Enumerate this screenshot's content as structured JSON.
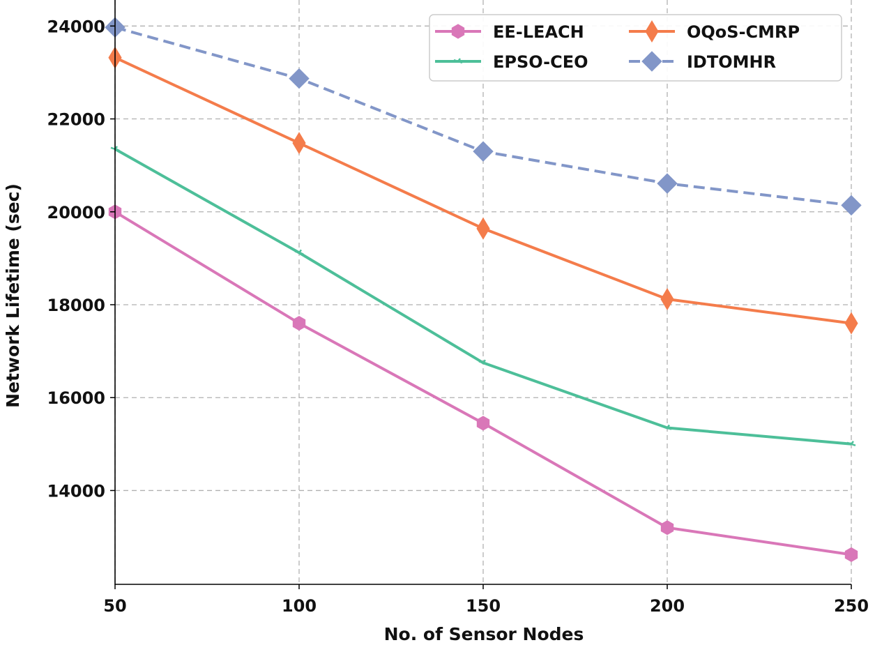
{
  "chart_data": {
    "type": "line",
    "title": "",
    "xlabel": "No. of Sensor Nodes",
    "ylabel": "Network Lifetime (sec)",
    "x": [
      50,
      100,
      150,
      200,
      250
    ],
    "x_tick_labels": [
      "50",
      "100",
      "150",
      "200",
      "250"
    ],
    "y_tick_values": [
      14000,
      16000,
      18000,
      20000,
      22000,
      24000
    ],
    "y_tick_labels": [
      "14000",
      "16000",
      "18000",
      "20000",
      "22000",
      "24000"
    ],
    "xlim": [
      50,
      250
    ],
    "ylim": [
      11980,
      24560
    ],
    "grid": true,
    "legend_position": "top-right",
    "legend_columns": 2,
    "series": [
      {
        "name": "EE-LEACH",
        "values": [
          20000,
          17600,
          15450,
          13200,
          12620
        ],
        "color": "#d977b8",
        "marker": "hexagon",
        "linestyle": "solid"
      },
      {
        "name": "EPSO-CEO",
        "values": [
          21350,
          19120,
          16750,
          15350,
          15000
        ],
        "color": "#4dbf99",
        "marker": "tri",
        "linestyle": "solid"
      },
      {
        "name": "OQoS-CMRP",
        "values": [
          23320,
          21480,
          19640,
          18120,
          17600
        ],
        "color": "#f47c4b",
        "marker": "thin-diamond",
        "linestyle": "solid"
      },
      {
        "name": "IDTOMHR",
        "values": [
          23970,
          22870,
          21300,
          20610,
          20140
        ],
        "color": "#8296c8",
        "marker": "diamond",
        "linestyle": "dashed"
      }
    ]
  }
}
